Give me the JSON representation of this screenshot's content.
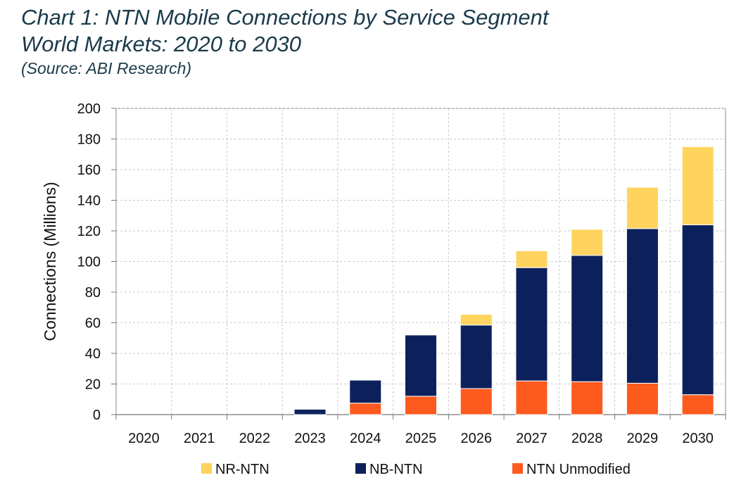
{
  "chart_data": {
    "type": "bar",
    "stacked": true,
    "title": "Chart 1: NTN Mobile Connections by Service Segment",
    "subtitle": "World Markets: 2020 to 2030",
    "source": "(Source: ABI Research)",
    "xlabel": "",
    "ylabel": "Connections (Millions)",
    "ylim": [
      0,
      200
    ],
    "yticks": [
      0,
      20,
      40,
      60,
      80,
      100,
      120,
      140,
      160,
      180,
      200
    ],
    "grid": true,
    "legend_position": "bottom",
    "categories": [
      "2020",
      "2021",
      "2022",
      "2023",
      "2024",
      "2025",
      "2026",
      "2027",
      "2028",
      "2029",
      "2030"
    ],
    "series": [
      {
        "name": "NTN Unmodified",
        "color": "#fd5a1e",
        "values": [
          0,
          0,
          0,
          0,
          7.5,
          12,
          17,
          22,
          21.5,
          20.5,
          13
        ]
      },
      {
        "name": "NB-NTN",
        "color": "#0c215c",
        "values": [
          0,
          0,
          0,
          3.5,
          15,
          40,
          41.5,
          74,
          82.5,
          101,
          111
        ]
      },
      {
        "name": "NR-NTN",
        "color": "#fed35e",
        "values": [
          0,
          0,
          0,
          0,
          0,
          0,
          7,
          11,
          17,
          27,
          51
        ]
      }
    ],
    "legend_order": [
      "NR-NTN",
      "NB-NTN",
      "NTN Unmodified"
    ]
  }
}
